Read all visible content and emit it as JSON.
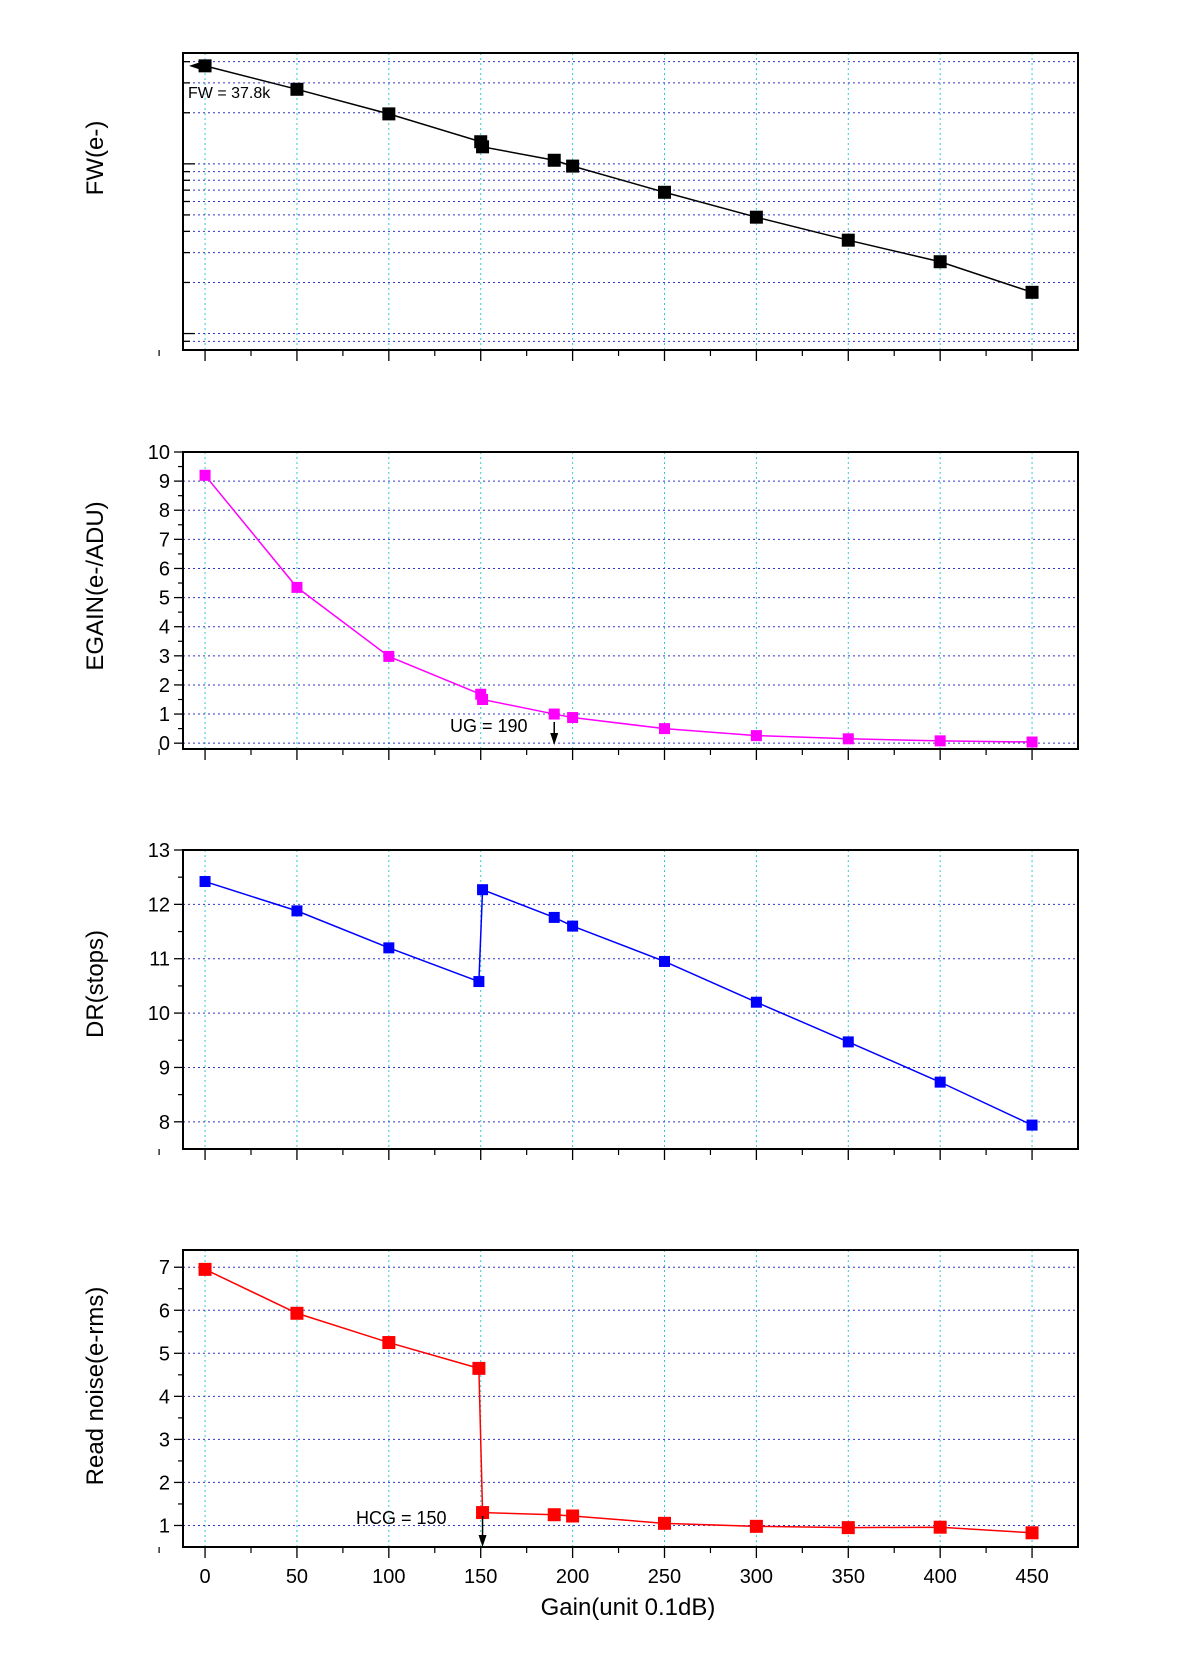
{
  "xlabel": "Gain(unit 0.1dB)",
  "x_ticks": [
    0,
    50,
    100,
    150,
    200,
    250,
    300,
    350,
    400,
    450
  ],
  "xlim": [
    -12,
    475
  ],
  "chart_data": [
    {
      "type": "line",
      "ylabel": "FW(e-)",
      "yscale": "log",
      "ylim": [
        800,
        45000
      ],
      "y_ticks": [],
      "grid": true,
      "color": "#000000",
      "x": [
        0,
        50,
        100,
        150,
        151,
        190,
        200,
        250,
        300,
        350,
        400,
        450
      ],
      "values": [
        37800,
        27500,
        19700,
        13500,
        12600,
        10500,
        9700,
        6800,
        4850,
        3550,
        2650,
        1750
      ],
      "annotation": {
        "text": "FW = 37.8k",
        "x": 0,
        "y": 37800,
        "arrow": "left"
      }
    },
    {
      "type": "line",
      "ylabel": "EGAIN(e-/ADU)",
      "ylim": [
        -0.2,
        10
      ],
      "y_ticks": [
        0,
        1,
        2,
        3,
        4,
        5,
        6,
        7,
        8,
        9,
        10
      ],
      "grid": true,
      "color": "#ff00ff",
      "x": [
        0,
        50,
        100,
        150,
        151,
        190,
        200,
        250,
        300,
        350,
        400,
        450
      ],
      "values": [
        9.2,
        5.35,
        2.98,
        1.68,
        1.5,
        1.0,
        0.88,
        0.5,
        0.26,
        0.15,
        0.08,
        0.04
      ],
      "annotation": {
        "text": "UG = 190",
        "x": 190,
        "y": 1.0,
        "arrow": "down"
      }
    },
    {
      "type": "line",
      "ylabel": "DR(stops)",
      "ylim": [
        7.5,
        13
      ],
      "y_ticks": [
        8,
        9,
        10,
        11,
        12,
        13
      ],
      "grid": true,
      "color": "#0000ff",
      "x": [
        0,
        50,
        100,
        149,
        151,
        190,
        200,
        250,
        300,
        350,
        400,
        450
      ],
      "values": [
        12.42,
        11.88,
        11.2,
        10.58,
        12.27,
        11.76,
        11.6,
        10.95,
        10.2,
        9.47,
        8.73,
        7.94
      ]
    },
    {
      "type": "line",
      "ylabel": "Read noise(e-rms)",
      "ylim": [
        0.5,
        7.4
      ],
      "y_ticks": [
        1,
        2,
        3,
        4,
        5,
        6,
        7
      ],
      "grid": true,
      "color": "#ff0000",
      "x": [
        0,
        50,
        100,
        149,
        151,
        190,
        200,
        250,
        300,
        350,
        400,
        450
      ],
      "values": [
        6.95,
        5.93,
        5.25,
        4.65,
        1.3,
        1.25,
        1.22,
        1.05,
        0.98,
        0.95,
        0.96,
        0.83
      ],
      "annotation": {
        "text": "HCG = 150",
        "x": 151,
        "y": 1.3,
        "arrow": "down"
      }
    }
  ]
}
